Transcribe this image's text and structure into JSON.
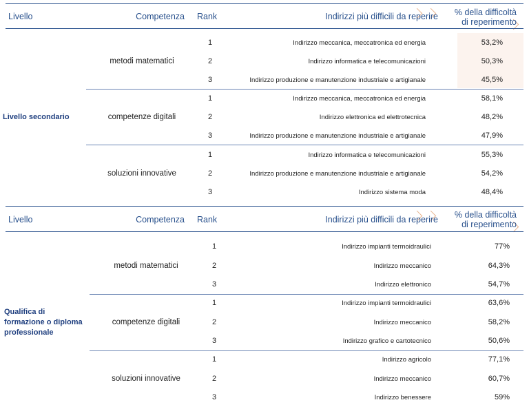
{
  "header": {
    "livello": "Livello",
    "competenza": "Competenza",
    "rank": "Rank",
    "indirizzi": "Indirizzi più difficili da reperire",
    "pct_line1": "% della difficoltà",
    "pct_line2": "di reperimento"
  },
  "sections": [
    {
      "level": "Livello secondario",
      "groups": [
        {
          "competenza": "metodi matematici",
          "rows": [
            {
              "rank": "1",
              "indirizzo": "Indirizzo meccanica, meccatronica ed energia",
              "pct": "53,2%"
            },
            {
              "rank": "2",
              "indirizzo": "Indirizzo informatica e telecomunicazioni",
              "pct": "50,3%"
            },
            {
              "rank": "3",
              "indirizzo": "Indirizzo produzione e manutenzione industriale e artigianale",
              "pct": "45,5%"
            }
          ]
        },
        {
          "competenza": "competenze digitali",
          "rows": [
            {
              "rank": "1",
              "indirizzo": "Indirizzo meccanica, meccatronica ed energia",
              "pct": "58,1%"
            },
            {
              "rank": "2",
              "indirizzo": "Indirizzo elettronica ed elettrotecnica",
              "pct": "48,2%"
            },
            {
              "rank": "3",
              "indirizzo": "Indirizzo produzione e manutenzione industriale e artigianale",
              "pct": "47,9%"
            }
          ]
        },
        {
          "competenza": "soluzioni innovative",
          "rows": [
            {
              "rank": "1",
              "indirizzo": "Indirizzo informatica e telecomunicazioni",
              "pct": "55,3%"
            },
            {
              "rank": "2",
              "indirizzo": "Indirizzo produzione e manutenzione industriale e artigianale",
              "pct": "54,2%"
            },
            {
              "rank": "3",
              "indirizzo": "Indirizzo sistema moda",
              "pct": "48,4%"
            }
          ]
        }
      ]
    },
    {
      "level_lines": [
        "Qualifica di",
        "formazione o diploma",
        "professionale"
      ],
      "groups": [
        {
          "competenza": "metodi matematici",
          "rows": [
            {
              "rank": "1",
              "indirizzo": "Indirizzo impianti termoidraulici",
              "pct": "77%"
            },
            {
              "rank": "2",
              "indirizzo": "Indirizzo meccanico",
              "pct": "64,3%"
            },
            {
              "rank": "3",
              "indirizzo": "Indirizzo elettronico",
              "pct": "54,7%"
            }
          ]
        },
        {
          "competenza": "competenze digitali",
          "rows": [
            {
              "rank": "1",
              "indirizzo": "Indirizzo impianti termoidraulici",
              "pct": "63,6%"
            },
            {
              "rank": "2",
              "indirizzo": "Indirizzo meccanico",
              "pct": "58,2%"
            },
            {
              "rank": "3",
              "indirizzo": "Indirizzo grafico e cartotecnico",
              "pct": "50,6%"
            }
          ]
        },
        {
          "competenza": "soluzioni innovative",
          "rows": [
            {
              "rank": "1",
              "indirizzo": "Indirizzo agricolo",
              "pct": "77,1%"
            },
            {
              "rank": "2",
              "indirizzo": "Indirizzo meccanico",
              "pct": "60,7%"
            },
            {
              "rank": "3",
              "indirizzo": "Indirizzo benessere",
              "pct": "59%"
            }
          ]
        }
      ]
    }
  ]
}
